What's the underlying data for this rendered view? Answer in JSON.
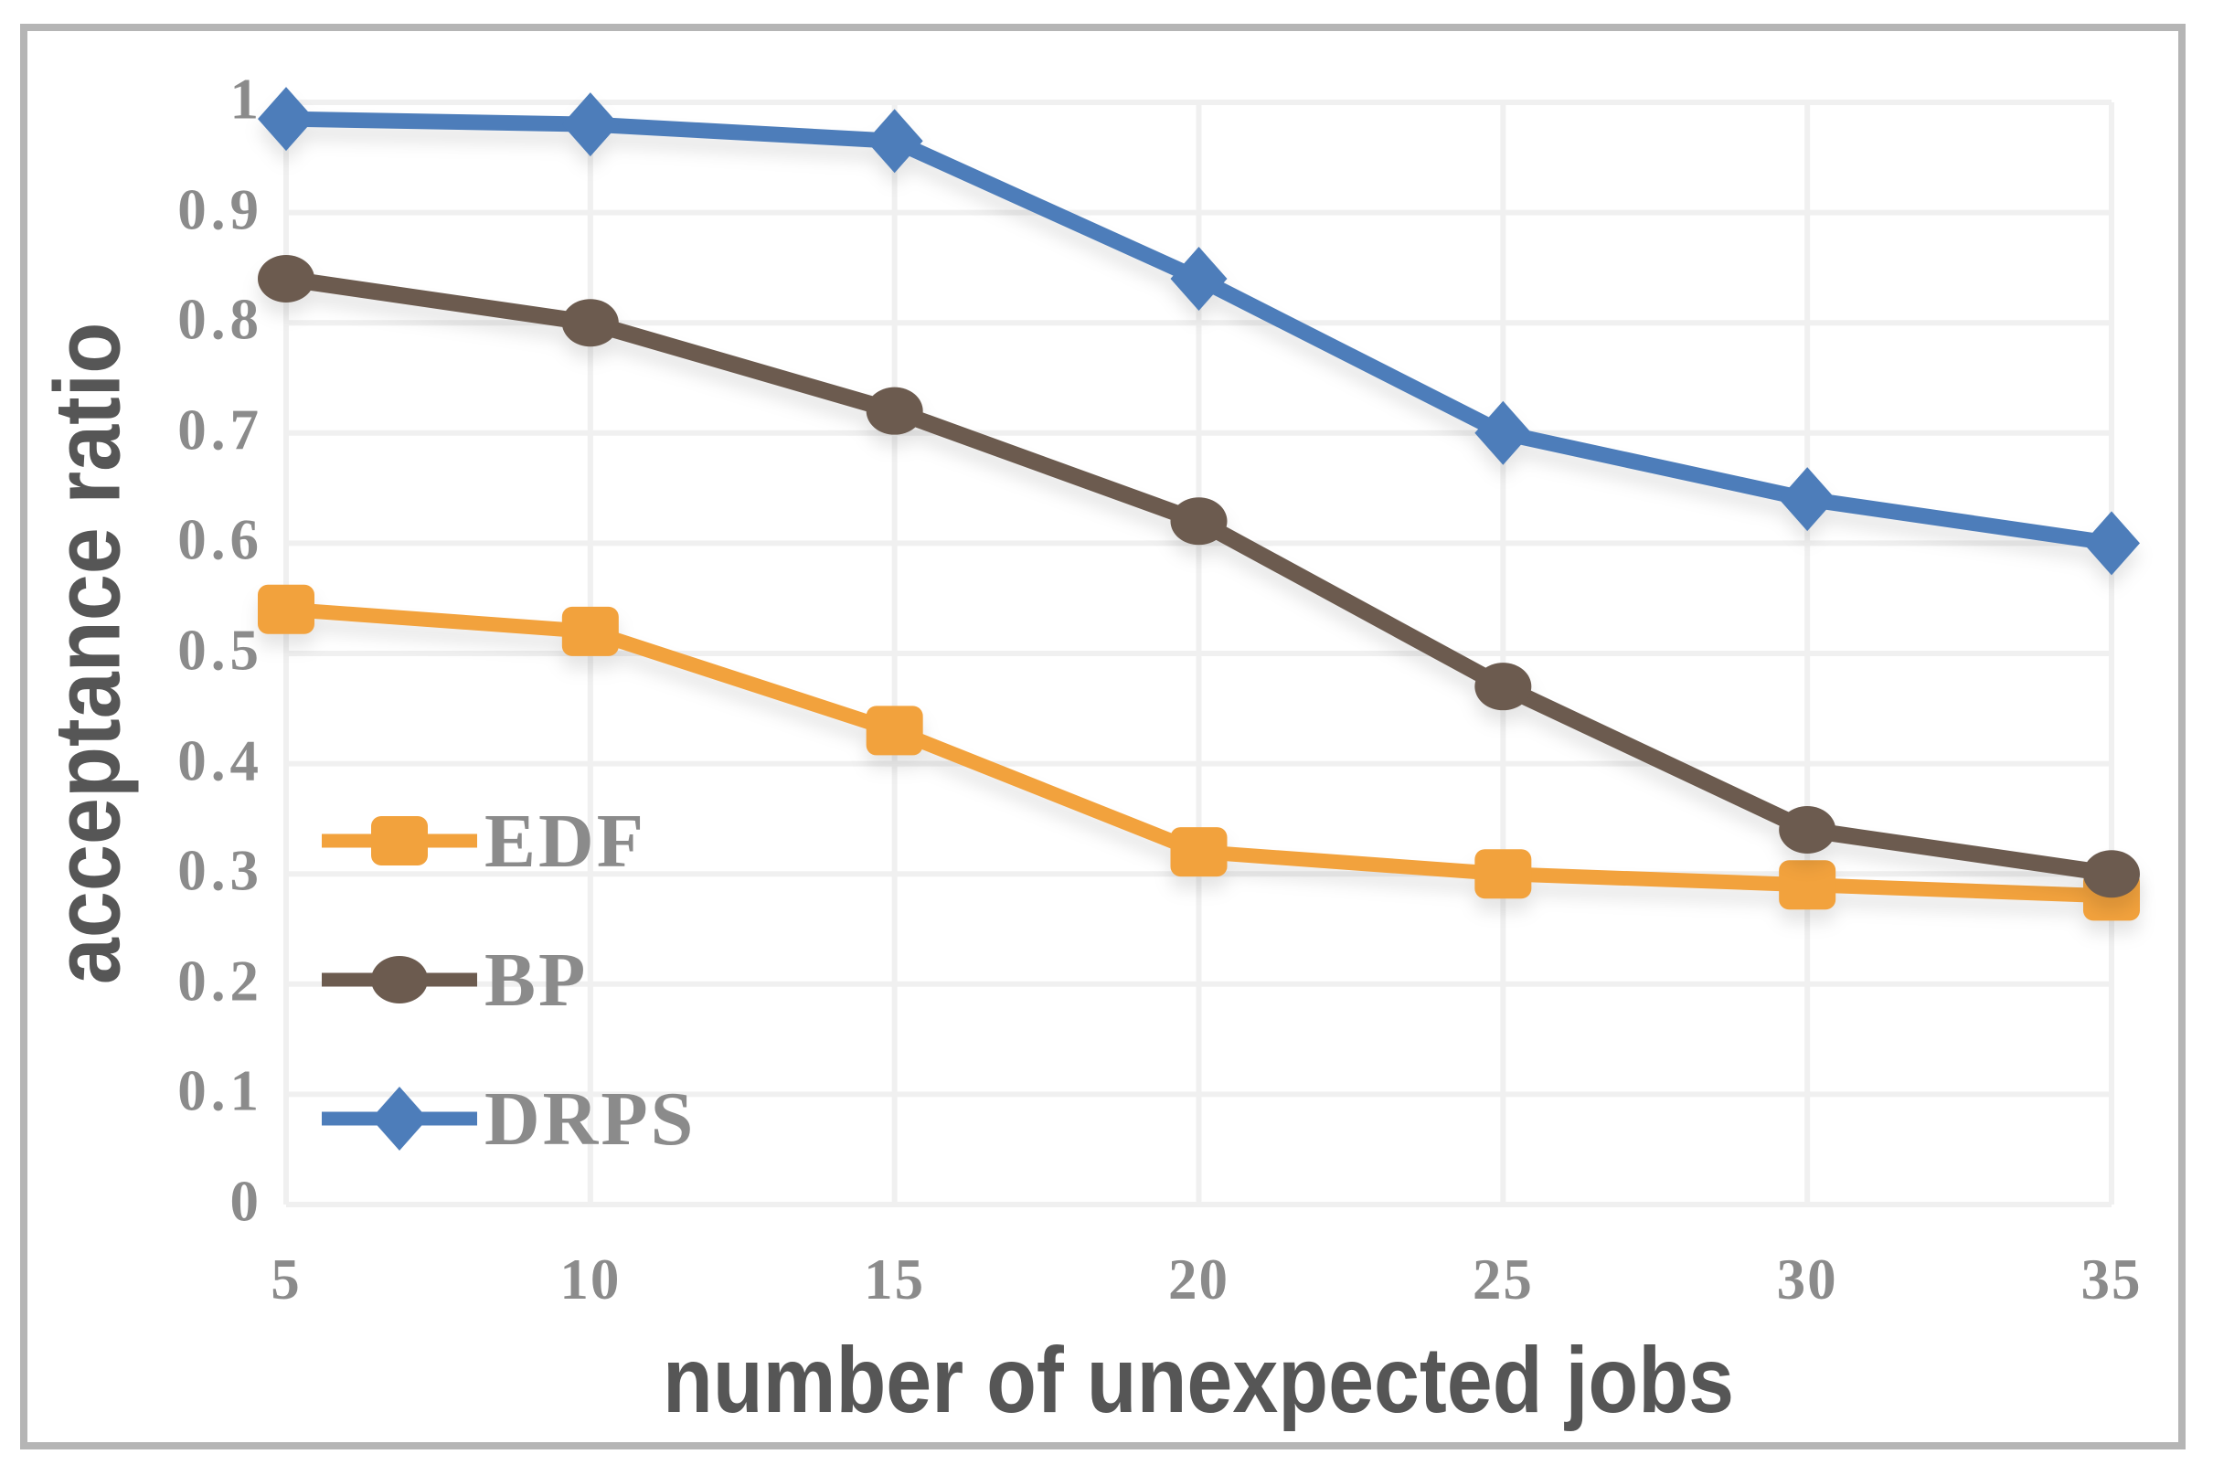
{
  "chart_data": {
    "type": "line",
    "title": "",
    "xlabel": "number of unexpected jobs",
    "ylabel": "acceptance ratio",
    "x": [
      5,
      10,
      15,
      20,
      25,
      30,
      35
    ],
    "x_tick_labels": [
      "5",
      "10",
      "15",
      "20",
      "25",
      "30",
      "35"
    ],
    "y_tick_labels_top_down": [
      "1",
      "0.9",
      "0.8",
      "0.7",
      "0.6",
      "0.5",
      "0.4",
      "0.3",
      "0.2",
      "0.1",
      "0"
    ],
    "ylim": [
      0,
      1
    ],
    "grid": true,
    "legend_position": "inside-lower-left",
    "series": [
      {
        "name": "EDF",
        "marker": "square",
        "color": "#F2A23D",
        "line_width": 16,
        "values": [
          0.54,
          0.52,
          0.43,
          0.32,
          0.3,
          0.29,
          0.28
        ]
      },
      {
        "name": "BP",
        "marker": "circle",
        "color": "#6C5B4F",
        "line_width": 18,
        "values": [
          0.84,
          0.8,
          0.72,
          0.62,
          0.47,
          0.34,
          0.3
        ]
      },
      {
        "name": "DRPS",
        "marker": "diamond",
        "color": "#4D7DBA",
        "line_width": 17,
        "values": [
          0.985,
          0.98,
          0.965,
          0.84,
          0.7,
          0.64,
          0.6
        ]
      }
    ]
  },
  "colors": {
    "tick_label": "#8B8B8B",
    "axis_title": "#565656",
    "gridline": "#F0F0F0",
    "frame_border": "#B5B5B5",
    "background": "#FFFFFF"
  }
}
